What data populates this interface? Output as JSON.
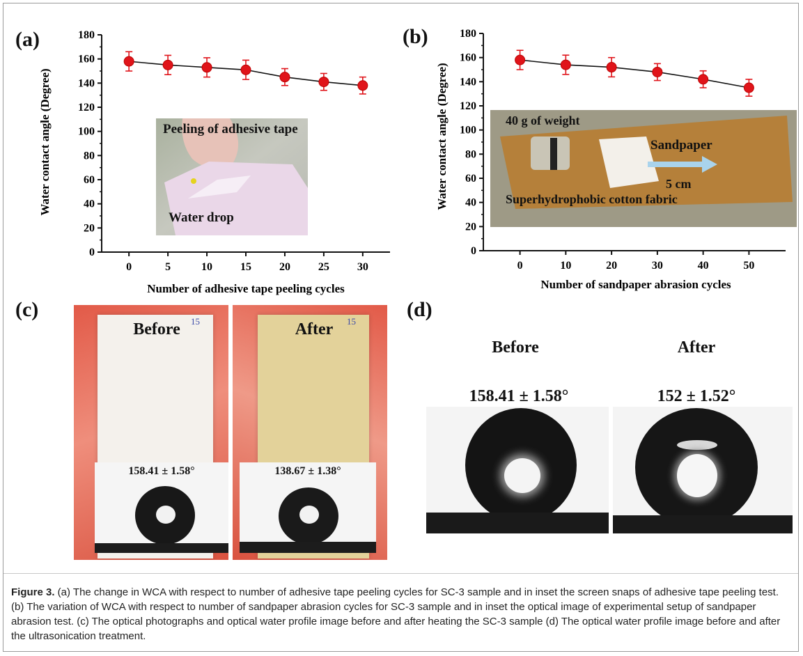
{
  "panels": {
    "a": "(a)",
    "b": "(b)",
    "c": "(c)",
    "d": "(d)"
  },
  "chart_data": [
    {
      "type": "scatter",
      "panel": "(a)",
      "x": [
        0,
        5,
        10,
        15,
        20,
        25,
        30
      ],
      "y": [
        158,
        155,
        153,
        151,
        145,
        141,
        138
      ],
      "error": [
        8,
        8,
        8,
        8,
        7,
        7,
        7
      ],
      "xlabel": "Number of adhesive tape peeling cycles",
      "ylabel": "Water contact angle (Degree)",
      "xticks": [
        "0",
        "5",
        "10",
        "15",
        "20",
        "25",
        "30"
      ],
      "yticks": [
        "0",
        "20",
        "40",
        "60",
        "80",
        "100",
        "120",
        "140",
        "160",
        "180"
      ],
      "xlim": [
        -3.5,
        33.5
      ],
      "ylim": [
        0,
        180
      ],
      "marker_color": "#e0141a",
      "line_color": "#111111",
      "inset_labels": [
        "Peeling of adhesive tape",
        "Water drop"
      ]
    },
    {
      "type": "scatter",
      "panel": "(b)",
      "x": [
        0,
        10,
        20,
        30,
        40,
        50
      ],
      "y": [
        158,
        154,
        152,
        148,
        142,
        135
      ],
      "error": [
        8,
        8,
        8,
        7,
        7,
        7
      ],
      "xlabel": "Number of sandpaper abrasion cycles",
      "ylabel": "Water contact angle (Degree)",
      "xticks": [
        "0",
        "10",
        "20",
        "30",
        "40",
        "50"
      ],
      "yticks": [
        "0",
        "20",
        "40",
        "60",
        "80",
        "100",
        "120",
        "140",
        "160",
        "180"
      ],
      "xlim": [
        -8,
        58
      ],
      "ylim": [
        0,
        180
      ],
      "marker_color": "#e0141a",
      "line_color": "#111111",
      "inset_labels": [
        "40 g of weight",
        "Sandpaper",
        "5 cm",
        "Superhydrophobic cotton fabric"
      ]
    }
  ],
  "panel_c": {
    "before_label": "Before",
    "after_label": "After",
    "before_angle": "158.41 ± 1.58°",
    "after_angle": "138.67 ± 1.38°",
    "sample_tag": "15"
  },
  "panel_d": {
    "before_label": "Before",
    "after_label": "After",
    "before_angle": "158.41 ± 1.58°",
    "after_angle": "152 ± 1.52°"
  },
  "caption": {
    "label": "Figure 3.",
    "text": " (a) The change in WCA with respect to number of adhesive tape peeling cycles for SC-3 sample and in inset the screen snaps of adhesive tape peeling test. (b) The variation of WCA with respect to number of sandpaper abrasion cycles for SC-3 sample and in inset the optical image of experimental setup of sandpaper abrasion test. (c) The optical photographs and optical water profile image before and after heating the SC-3 sample (d) The optical water profile image before and after the ultrasonication treatment."
  },
  "colors": {
    "marker": "#e0141a",
    "fabric_before": "#f4f1ec",
    "fabric_after": "#e3d29a",
    "background_red": "#e6705c",
    "sandpaper": "#b5803a"
  }
}
